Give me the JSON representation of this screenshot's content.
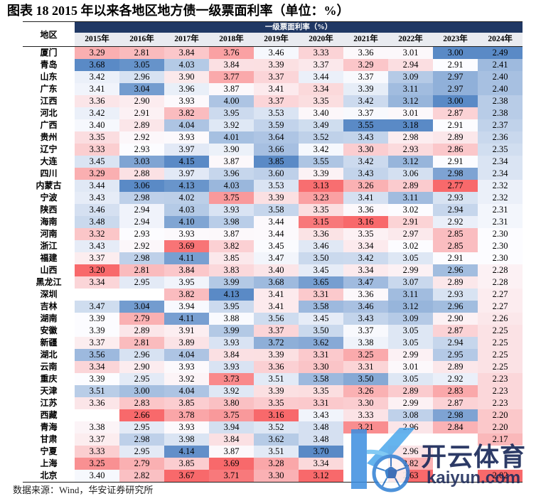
{
  "source": "数据来源：Wind，华安证券研究所",
  "watermark": {
    "name": "开云体育",
    "url": "kaiyun.com"
  },
  "chart_data": {
    "type": "heatmap",
    "title": "图表 18 2015 年以来各地区地方债一级票面利率（单位：%）",
    "row_header": "地区",
    "column_group_label": "一级票面利率（%）",
    "columns": [
      "2015年",
      "2016年",
      "2017年",
      "2018年",
      "2019年",
      "2020年",
      "2021年",
      "2022年",
      "2023年",
      "2024年"
    ],
    "color_scale": {
      "low": "#F8696B",
      "mid": "#FCFCFF",
      "high": "#5A8AC6"
    },
    "header_color": "#203864",
    "rows": [
      {
        "region": "厦门",
        "values": [
          3.29,
          2.81,
          3.84,
          3.76,
          3.46,
          3.33,
          3.36,
          3.01,
          3.0,
          2.49
        ]
      },
      {
        "region": "青岛",
        "values": [
          3.68,
          3.05,
          4.03,
          3.84,
          3.39,
          3.37,
          3.29,
          2.94,
          2.91,
          2.41
        ]
      },
      {
        "region": "山东",
        "values": [
          3.42,
          2.96,
          3.9,
          3.77,
          3.37,
          3.44,
          3.37,
          3.09,
          2.97,
          2.4
        ]
      },
      {
        "region": "广东",
        "values": [
          3.41,
          3.04,
          3.96,
          3.87,
          3.41,
          3.34,
          3.39,
          3.11,
          2.97,
          2.4
        ]
      },
      {
        "region": "江西",
        "values": [
          3.36,
          2.9,
          3.93,
          4.0,
          3.37,
          3.35,
          3.42,
          3.12,
          3.0,
          2.38
        ]
      },
      {
        "region": "河北",
        "values": [
          3.42,
          2.91,
          3.82,
          3.95,
          3.53,
          3.4,
          3.37,
          3.01,
          2.87,
          2.38
        ]
      },
      {
        "region": "广西",
        "values": [
          3.4,
          2.89,
          4.04,
          3.92,
          3.59,
          3.49,
          3.55,
          3.18,
          2.91,
          2.37
        ]
      },
      {
        "region": "贵州",
        "values": [
          3.35,
          2.92,
          3.93,
          4.01,
          3.64,
          3.52,
          3.43,
          2.98,
          2.89,
          2.36
        ]
      },
      {
        "region": "辽宁",
        "values": [
          3.33,
          2.93,
          3.97,
          3.9,
          3.66,
          3.42,
          3.3,
          2.93,
          2.86,
          2.35
        ]
      },
      {
        "region": "大连",
        "values": [
          3.45,
          3.03,
          4.15,
          3.87,
          3.85,
          3.55,
          3.42,
          3.12,
          2.91,
          2.34
        ]
      },
      {
        "region": "四川",
        "values": [
          3.29,
          2.88,
          3.97,
          3.96,
          3.6,
          3.39,
          3.43,
          3.06,
          2.98,
          2.34
        ]
      },
      {
        "region": "内蒙古",
        "values": [
          3.44,
          3.06,
          4.13,
          4.03,
          3.53,
          3.13,
          3.26,
          2.89,
          2.77,
          2.32
        ]
      },
      {
        "region": "宁波",
        "values": [
          3.43,
          2.98,
          4.02,
          3.75,
          3.39,
          3.23,
          3.41,
          3.11,
          2.93,
          2.32
        ]
      },
      {
        "region": "陕西",
        "values": [
          3.46,
          2.94,
          4.03,
          3.93,
          3.58,
          3.35,
          3.36,
          3.02,
          2.94,
          2.31
        ]
      },
      {
        "region": "海南",
        "values": [
          3.48,
          2.94,
          4.1,
          3.98,
          3.44,
          3.15,
          3.16,
          2.91,
          2.92,
          2.31
        ]
      },
      {
        "region": "河南",
        "values": [
          3.32,
          2.93,
          3.93,
          3.87,
          3.44,
          3.36,
          3.35,
          2.97,
          2.85,
          2.3
        ]
      },
      {
        "region": "浙江",
        "values": [
          3.43,
          2.92,
          3.69,
          3.82,
          3.45,
          3.46,
          3.34,
          3.02,
          2.85,
          2.3
        ]
      },
      {
        "region": "福建",
        "values": [
          3.37,
          2.98,
          4.11,
          3.85,
          3.47,
          3.5,
          3.42,
          3.05,
          2.91,
          2.3
        ]
      },
      {
        "region": "山西",
        "values": [
          3.2,
          2.81,
          3.84,
          3.83,
          3.4,
          3.45,
          3.34,
          2.99,
          2.96,
          2.28
        ]
      },
      {
        "region": "黑龙江",
        "values": [
          3.34,
          2.95,
          3.95,
          3.99,
          3.68,
          3.65,
          3.47,
          3.07,
          2.89,
          2.28
        ]
      },
      {
        "region": "深圳",
        "values": [
          null,
          null,
          3.82,
          4.13,
          3.41,
          3.31,
          3.36,
          3.11,
          2.93,
          2.27
        ]
      },
      {
        "region": "吉林",
        "values": [
          3.47,
          3.04,
          3.94,
          3.95,
          3.41,
          3.58,
          3.46,
          3.12,
          2.96,
          2.27
        ]
      },
      {
        "region": "湖南",
        "values": [
          3.39,
          2.79,
          4.11,
          3.88,
          3.56,
          3.45,
          3.43,
          3.09,
          2.9,
          2.26
        ]
      },
      {
        "region": "安徽",
        "values": [
          3.39,
          2.89,
          3.91,
          3.99,
          3.37,
          3.5,
          3.37,
          3.05,
          2.87,
          2.25
        ]
      },
      {
        "region": "新疆",
        "values": [
          3.37,
          2.81,
          3.89,
          3.93,
          3.72,
          3.62,
          3.38,
          3.05,
          2.94,
          2.25
        ]
      },
      {
        "region": "湖北",
        "values": [
          3.56,
          2.96,
          4.04,
          3.84,
          3.39,
          3.31,
          3.25,
          2.99,
          2.95,
          2.25
        ]
      },
      {
        "region": "云南",
        "values": [
          3.34,
          2.9,
          3.93,
          3.93,
          3.36,
          3.3,
          3.31,
          3.01,
          2.89,
          2.25
        ]
      },
      {
        "region": "重庆",
        "values": [
          3.39,
          2.95,
          3.92,
          3.73,
          3.51,
          3.58,
          3.5,
          3.05,
          2.92,
          2.23
        ]
      },
      {
        "region": "天津",
        "values": [
          3.51,
          3.0,
          4.04,
          3.92,
          3.39,
          3.35,
          3.26,
          2.89,
          2.83,
          2.23
        ]
      },
      {
        "region": "江苏",
        "values": [
          3.36,
          2.83,
          3.85,
          3.8,
          3.35,
          3.31,
          3.3,
          2.99,
          2.87,
          2.23
        ]
      },
      {
        "region": "西藏",
        "values": [
          null,
          2.66,
          3.78,
          3.75,
          3.16,
          3.43,
          3.33,
          3.08,
          2.98,
          2.2
        ]
      },
      {
        "region": "青海",
        "values": [
          3.38,
          2.95,
          3.93,
          3.94,
          3.52,
          3.48,
          3.21,
          2.96,
          2.84,
          2.2
        ]
      },
      {
        "region": "甘肃",
        "values": [
          3.37,
          2.98,
          3.98,
          3.84,
          3.62,
          3.48,
          null,
          null,
          null,
          2.17
        ]
      },
      {
        "region": "宁夏",
        "values": [
          3.33,
          2.95,
          4.14,
          3.87,
          3.51,
          3.7,
          null,
          2.96,
          null,
          null
        ]
      },
      {
        "region": "上海",
        "values": [
          3.25,
          2.79,
          3.85,
          3.69,
          3.28,
          3.34,
          null,
          2.82,
          null,
          null
        ]
      },
      {
        "region": "北京",
        "values": [
          3.4,
          2.82,
          3.67,
          3.71,
          3.3,
          3.12,
          null,
          2.63,
          null,
          2.02
        ]
      }
    ]
  }
}
